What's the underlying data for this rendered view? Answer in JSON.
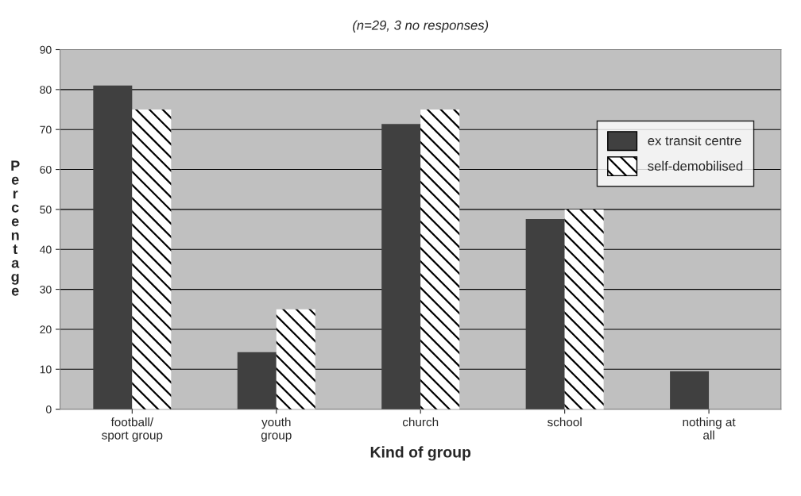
{
  "chart_data": {
    "type": "bar",
    "title": "(n=29, 3 no responses)",
    "xlabel": "Kind of group",
    "ylabel": "Percentage",
    "categories": [
      "football/\nsport group",
      "youth\ngroup",
      "church",
      "school",
      "nothing at\nall"
    ],
    "series": [
      {
        "name": "ex transit centre",
        "color": "#404040",
        "values": [
          81,
          14.3,
          71.4,
          47.6,
          9.5
        ]
      },
      {
        "name": "self-demobilised",
        "color": "#ffffff",
        "values": [
          75,
          25,
          75,
          50,
          0
        ]
      }
    ],
    "ylim": [
      0,
      90
    ],
    "yticks": [
      0,
      10,
      20,
      30,
      40,
      50,
      60,
      70,
      80,
      90
    ],
    "grid": "y",
    "legend": "top right"
  }
}
